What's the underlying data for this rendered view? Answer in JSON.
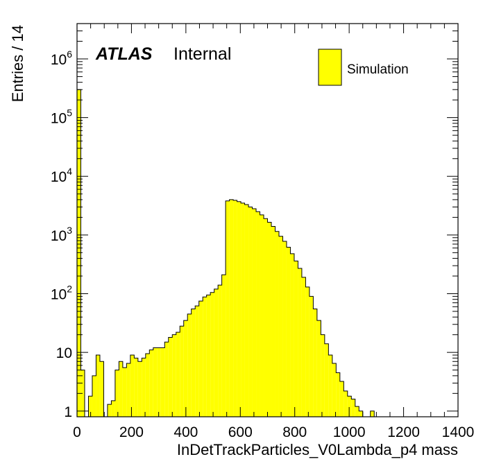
{
  "chart_data": {
    "type": "bar",
    "title": "",
    "xlabel": "InDetTrackParticles_V0Lambda_p4 mass",
    "ylabel": "Entries / 14",
    "label_bold": "ATLAS",
    "label_status": "Internal",
    "xlim": [
      0,
      1400
    ],
    "ylim": [
      0.8,
      4000000
    ],
    "yscale": "log",
    "bin_width": 14,
    "grid": false,
    "legend_position": "top-right",
    "x_ticks": [
      "0",
      "200",
      "400",
      "600",
      "800",
      "1000",
      "1200",
      "1400"
    ],
    "y_ticks": [
      {
        "value": 1,
        "base": "1",
        "exp": ""
      },
      {
        "value": 10,
        "base": "10",
        "exp": ""
      },
      {
        "value": 100,
        "base": "10",
        "exp": "2"
      },
      {
        "value": 1000,
        "base": "10",
        "exp": "3"
      },
      {
        "value": 10000,
        "base": "10",
        "exp": "4"
      },
      {
        "value": 100000,
        "base": "10",
        "exp": "5"
      },
      {
        "value": 1000000,
        "base": "10",
        "exp": "6"
      }
    ],
    "series": [
      {
        "name": "Simulation",
        "color": "#ffff00",
        "edgecolor": "#000000",
        "values": [
          300000,
          5,
          0,
          1.8,
          4,
          9,
          7,
          0,
          1.3,
          1.5,
          5,
          7,
          5.5,
          6.5,
          9,
          8,
          7,
          8,
          9.5,
          11,
          12,
          12,
          12,
          15,
          18,
          20,
          22,
          28,
          35,
          45,
          55,
          62,
          75,
          88,
          95,
          105,
          120,
          140,
          210,
          3800,
          4000,
          3900,
          3700,
          3500,
          3300,
          3000,
          2800,
          2500,
          2200,
          1900,
          1650,
          1400,
          1150,
          950,
          780,
          620,
          480,
          360,
          270,
          190,
          130,
          90,
          55,
          35,
          20,
          14,
          9,
          6.5,
          4.5,
          3.2,
          2.2,
          1.8,
          1.6,
          1.2,
          1.0,
          0,
          0,
          1,
          0,
          0,
          0,
          0,
          0,
          0,
          0,
          0,
          0,
          0,
          0,
          0,
          0,
          0,
          0,
          0,
          0,
          0,
          0,
          0,
          0,
          0
        ]
      }
    ]
  }
}
